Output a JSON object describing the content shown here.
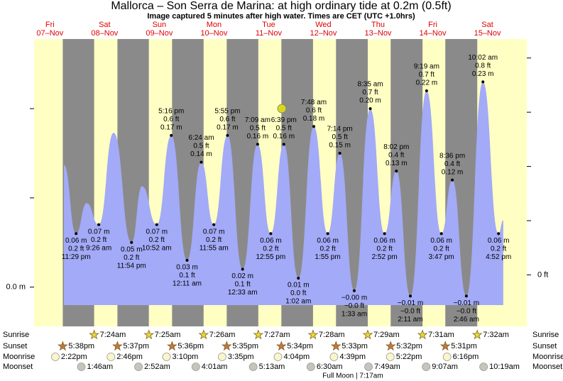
{
  "chart_data": {
    "type": "area",
    "title": "Mallorca – Son Serra de Marina: at high  ordinary tide at 0.2m (0.5ft)",
    "subtitle": "Image captured 5 minutes after high water. Times are CET (UTC +1.0hrs)",
    "annotation": "Full Moon | 7:17am",
    "weekdays": [
      "Fri",
      "Sat",
      "Sun",
      "Mon",
      "Tue",
      "Wed",
      "Thu",
      "Fri",
      "Sat"
    ],
    "categories": [
      "07–Nov",
      "08–Nov",
      "09–Nov",
      "10–Nov",
      "11–Nov",
      "12–Nov",
      "13–Nov",
      "14–Nov",
      "15–Nov"
    ],
    "xlim": [
      0.21,
      9.22
    ],
    "ylim": [
      -0.044,
      0.278
    ],
    "yticks": [
      {
        "value": 0,
        "label": "0.0 m"
      },
      {
        "value": 0.1,
        "label": null
      },
      {
        "value": 0.2,
        "label": null
      }
    ],
    "y2lim": [
      -0.19,
      0.87
    ],
    "y2ticks": [
      {
        "value": 0,
        "label": "0 ft"
      },
      {
        "value": 0.2,
        "label": null
      },
      {
        "value": 0.4,
        "label": null
      },
      {
        "value": 0.6,
        "label": null
      },
      {
        "value": 0.8,
        "label": null
      }
    ],
    "day_color": "#ffffc4",
    "night_color": "#8a8a8a",
    "series": [
      {
        "color": "#a3aaf7",
        "x": [
          0.755,
          0.979,
          1.171,
          1.393,
          1.665,
          1.992,
          2.184,
          2.453,
          2.719,
          3.008,
          3.267,
          3.497,
          3.747,
          4.023,
          4.298,
          4.538,
          4.777,
          5.043,
          5.325,
          5.58,
          5.801,
          6.065,
          6.358,
          6.619,
          6.835,
          7.091,
          7.388,
          7.658,
          7.858,
          8.115,
          8.418,
          8.703,
          8.79
        ],
        "values": [
          0.137,
          0.06,
          0.094,
          0.07,
          0.173,
          0.05,
          0.113,
          0.07,
          0.17,
          0.03,
          0.14,
          0.07,
          0.17,
          0.02,
          0.16,
          0.06,
          0.16,
          0.01,
          0.18,
          0.06,
          0.15,
          -0.004,
          0.2,
          0.06,
          0.13,
          -0.01,
          0.22,
          0.06,
          0.12,
          -0.01,
          0.23,
          0.06,
          0.075
        ],
        "value_labels": [
          null,
          "0.06 m",
          null,
          "0.07 m",
          null,
          "0.05 m",
          null,
          "0.07 m",
          "0.17 m",
          "0.03 m",
          "0.14 m",
          "0.07 m",
          "0.17 m",
          "0.02 m",
          "0.16 m",
          "0.06 m",
          "0.16 m",
          "0.01 m",
          "0.18 m",
          "0.06 m",
          "0.15 m",
          "−0.00 m",
          "0.20 m",
          "0.06 m",
          "0.13 m",
          "−0.01 m",
          "0.22 m",
          "0.06 m",
          "0.12 m",
          "−0.01 m",
          "0.23 m",
          "0.06 m",
          null
        ],
        "ft_labels": [
          null,
          "0.2 ft",
          null,
          "0.2 ft",
          null,
          "0.2 ft",
          null,
          "0.2 ft",
          "0.6 ft",
          "0.1 ft",
          "0.5 ft",
          "0.2 ft",
          "0.6 ft",
          "0.1 ft",
          "0.5 ft",
          "0.2 ft",
          "0.5 ft",
          "0.0 ft",
          "0.6 ft",
          "0.2 ft",
          "0.5 ft",
          "−0.0 ft",
          "0.7 ft",
          "0.2 ft",
          "0.4 ft",
          "−0.0 ft",
          "0.7 ft",
          "0.2 ft",
          "0.4 ft",
          "−0.0 ft",
          "0.8 ft",
          "0.2 ft",
          null
        ],
        "time_labels": [
          null,
          "11:29 pm",
          null,
          "9:26 am",
          null,
          "11:54 pm",
          null,
          "10:52 am",
          "5:16 pm",
          "12:11 am",
          "6:24 am",
          "11:55 am",
          "5:55 pm",
          "12:33 am",
          "7:09 am",
          "12:55 pm",
          "6:39 pm",
          "1:02 am",
          "7:48 am",
          "1:55 pm",
          "7:14 pm",
          "1:33 am",
          "8:35 am",
          "2:52 pm",
          "8:02 pm",
          "2:11 am",
          "9:19 am",
          "3:47 pm",
          "8:36 pm",
          "2:46 am",
          "10:02 am",
          "4:52 pm",
          null
        ]
      }
    ]
  },
  "astronomy": [
    {
      "name": "Sunrise",
      "times": [
        null,
        "7:24am",
        "7:25am",
        "7:26am",
        "7:27am",
        "7:28am",
        "7:29am",
        "7:31am",
        "7:32am"
      ]
    },
    {
      "name": "Sunset",
      "times": [
        "5:38pm",
        "5:37pm",
        "5:36pm",
        "5:35pm",
        "5:34pm",
        "5:33pm",
        "5:32pm",
        "5:31pm",
        null
      ]
    },
    {
      "name": "Moonrise",
      "times": [
        "2:22pm",
        "2:46pm",
        "3:10pm",
        "3:35pm",
        "4:04pm",
        "4:39pm",
        "5:22pm",
        "6:16pm",
        null
      ]
    },
    {
      "name": "Moonset",
      "times": [
        null,
        "1:46am",
        "2:52am",
        "4:01am",
        "5:13am",
        "6:30am",
        "7:49am",
        "9:07am",
        "10:19am"
      ]
    }
  ]
}
